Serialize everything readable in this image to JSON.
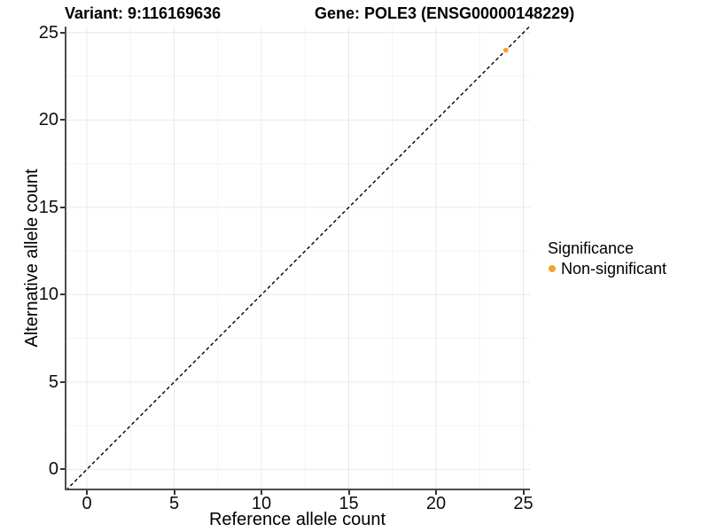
{
  "titles": {
    "variant": "Variant: 9:116169636",
    "gene": "Gene: POLE3 (ENSG00000148229)"
  },
  "chart_data": {
    "type": "scatter",
    "xlabel": "Reference allele count",
    "ylabel": "Alternative allele count",
    "xlim": [
      -1.27,
      25.38
    ],
    "ylim": [
      -1.2,
      25.35
    ],
    "major_ticks": [
      0,
      5,
      10,
      15,
      20,
      25
    ],
    "minor_ticks": [
      2.5,
      7.5,
      12.5,
      17.5,
      22.5
    ],
    "points": [
      {
        "x": 24,
        "y": 24,
        "series": "Non-significant"
      }
    ],
    "identity_line": {
      "slope": 1,
      "intercept": 0,
      "style": "dashed"
    },
    "legend": {
      "title": "Significance",
      "items": [
        {
          "label": "Non-significant",
          "color": "#F9A029"
        }
      ]
    },
    "grid": "on",
    "legend_position": "right",
    "colors": {
      "point": "#F9A029",
      "axis_line": "#4D4D4D",
      "grid_major": "#E8E8E8",
      "grid_minor": "#F3F3F3",
      "tick_mark": "#333333",
      "identity_line": "#000000",
      "background": "#FFFFFF"
    }
  }
}
